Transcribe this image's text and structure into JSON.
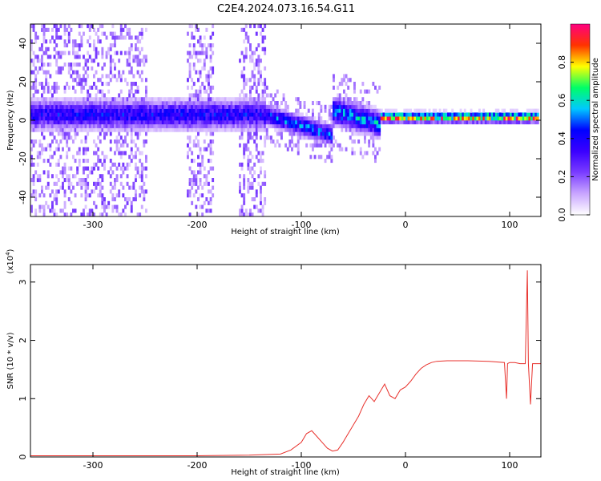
{
  "chart_data": [
    {
      "type": "heatmap",
      "title": "C2E4.2024.073.16.54.G11",
      "xlabel": "Height of straight line (km)",
      "ylabel": "Frequency (Hz)",
      "xlim": [
        -360,
        130
      ],
      "ylim": [
        -50,
        50
      ],
      "x_ticks": [
        -300,
        -200,
        -100,
        0,
        100
      ],
      "y_ticks": [
        -40,
        -20,
        0,
        20,
        40
      ],
      "colorbar": {
        "label": "Normalized spectral amplitude",
        "range": [
          0.0,
          1.0
        ],
        "ticks": [
          "0.0",
          "0.2",
          "0.4",
          "0.6",
          "0.8"
        ],
        "colors": [
          "#ffffff",
          "#c9a6ff",
          "#7a3cff",
          "#3a00ff",
          "#0000ff",
          "#00c8ff",
          "#00ff66",
          "#ffff00",
          "#ff3300",
          "#ff0080"
        ]
      },
      "segments": [
        {
          "x_from": -360,
          "x_to": -135,
          "center_hz": 3,
          "width_hz": 9,
          "peak_amp": 0.45,
          "scatter": "wide"
        },
        {
          "x_from": -135,
          "x_to": -70,
          "center_hz_from": 3,
          "center_hz_to": -8,
          "width_hz": 6,
          "peak_amp": 0.55,
          "scatter": "medium"
        },
        {
          "x_from": -70,
          "x_to": -25,
          "center_hz_from": 5,
          "center_hz_to": -2,
          "width_hz": 8,
          "peak_amp": 0.6,
          "scatter": "medium"
        },
        {
          "x_from": -25,
          "x_to": 130,
          "center_hz": 1.5,
          "width_hz": 3,
          "peak_amp": 0.95,
          "scatter": "none"
        }
      ]
    },
    {
      "type": "line",
      "title": "",
      "xlabel": "Height of straight line (km)",
      "ylabel": "SNR (10 * v/v)",
      "y_multiplier": "(x10",
      "y_multiplier_exp": "4",
      "y_multiplier_close": ")",
      "xlim": [
        -360,
        130
      ],
      "ylim": [
        0,
        3.3
      ],
      "x_ticks": [
        -300,
        -200,
        -100,
        0,
        100
      ],
      "y_ticks": [
        0,
        1,
        2,
        3
      ],
      "series": [
        {
          "color": "#e8312c",
          "x": [
            -360,
            -300,
            -200,
            -150,
            -120,
            -110,
            -100,
            -95,
            -90,
            -85,
            -80,
            -75,
            -70,
            -65,
            -60,
            -55,
            -50,
            -45,
            -40,
            -35,
            -30,
            -25,
            -20,
            -15,
            -10,
            -5,
            0,
            5,
            10,
            15,
            20,
            25,
            30,
            40,
            60,
            80,
            95,
            97,
            98,
            100,
            105,
            110,
            115,
            117,
            118,
            120,
            122,
            125,
            130
          ],
          "y": [
            0.02,
            0.02,
            0.02,
            0.03,
            0.05,
            0.12,
            0.25,
            0.4,
            0.45,
            0.35,
            0.25,
            0.15,
            0.1,
            0.12,
            0.25,
            0.4,
            0.55,
            0.7,
            0.9,
            1.05,
            0.95,
            1.1,
            1.25,
            1.05,
            1.0,
            1.15,
            1.2,
            1.3,
            1.42,
            1.52,
            1.58,
            1.62,
            1.64,
            1.65,
            1.65,
            1.64,
            1.62,
            1.0,
            1.6,
            1.62,
            1.62,
            1.6,
            1.6,
            3.2,
            1.6,
            0.9,
            1.6,
            1.6,
            1.6
          ]
        }
      ]
    }
  ]
}
